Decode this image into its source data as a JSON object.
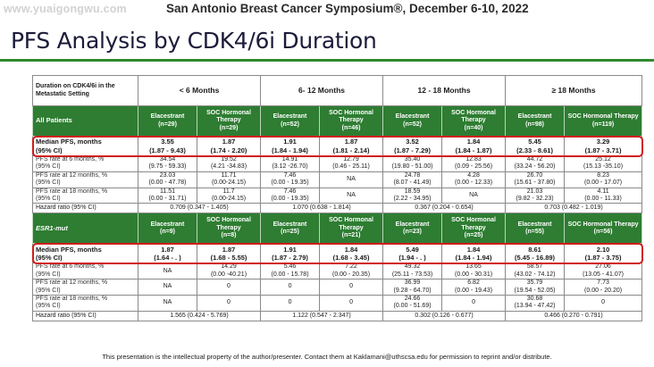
{
  "watermark": "www.yuaigongwu.com",
  "header": "San Antonio Breast Cancer Symposium®, December 6-10, 2022",
  "title": "PFS Analysis by CDK4/6i Duration",
  "table": {
    "duration_label": "Duration on CDK4/6i in the Metastatic Setting",
    "durations": [
      "< 6 Months",
      "6- 12 Months",
      "12 - 18 Months",
      "≥ 18 Months"
    ],
    "all_patients": {
      "label": "All Patients",
      "arms": [
        {
          "name": "Elacestrant",
          "n": "(n=29)"
        },
        {
          "name": "SOC Hormonal Therapy",
          "n": "(n=29)"
        },
        {
          "name": "Elacestrant",
          "n": "(n=52)"
        },
        {
          "name": "SOC Hormonal Therapy",
          "n": "(n=46)"
        },
        {
          "name": "Elacestrant",
          "n": "(n=52)"
        },
        {
          "name": "SOC Hormonal Therapy",
          "n": "(n=40)"
        },
        {
          "name": "Elacestrant",
          "n": "(n=98)"
        },
        {
          "name": "SOC Hormonal Therapy",
          "n": "(n=119)"
        }
      ],
      "median_label_1": "Median PFS, months",
      "median_label_2": "(95% CI)",
      "median": [
        {
          "v": "3.55",
          "ci": "(1.87 - 9.43)"
        },
        {
          "v": "1.87",
          "ci": "(1.74 - 2.20)"
        },
        {
          "v": "1.91",
          "ci": "(1.84 - 1.94)"
        },
        {
          "v": "1.87",
          "ci": "(1.81 - 2.14)"
        },
        {
          "v": "3.52",
          "ci": "(1.87 - 7.29)"
        },
        {
          "v": "1.84",
          "ci": "(1.84 - 1.87)"
        },
        {
          "v": "5.45",
          "ci": "(2.33 - 8.61)"
        },
        {
          "v": "3.29",
          "ci": "(1.87 - 3.71)"
        }
      ],
      "rates": [
        {
          "label_1": "PFS rate at 6 months, %",
          "label_2": "(95% CI)",
          "cells": [
            {
              "v": "34.54",
              "ci": "(9.75 - 59.33)"
            },
            {
              "v": "19.52",
              "ci": "(4.21 -34.83)"
            },
            {
              "v": "14.91",
              "ci": "(3.12 -26.70)"
            },
            {
              "v": "12.79",
              "ci": "(0.46 - 25.11)"
            },
            {
              "v": "35.40",
              "ci": "(19.80 - 51.00)"
            },
            {
              "v": "12.83",
              "ci": "(0.09 - 25.56)"
            },
            {
              "v": "44.72",
              "ci": "(33.24 - 56.20)"
            },
            {
              "v": "25.12",
              "ci": "(15.13 -35.10)"
            }
          ]
        },
        {
          "label_1": "PFS rate at 12 months, %",
          "label_2": "(95% CI)",
          "cells": [
            {
              "v": "23.03",
              "ci": "(0.00 - 47.78)"
            },
            {
              "v": "11.71",
              "ci": "(0.00-24.15)"
            },
            {
              "v": "7.46",
              "ci": "(0.00 - 19.35)"
            },
            {
              "v": "NA",
              "ci": ""
            },
            {
              "v": "24.78",
              "ci": "(8.07 - 41.49)"
            },
            {
              "v": "4.28",
              "ci": "(0.00 - 12.33)"
            },
            {
              "v": "26.70",
              "ci": "(15.61 - 37.80)"
            },
            {
              "v": "8.23",
              "ci": "(0.00 - 17.07)"
            }
          ]
        },
        {
          "label_1": "PFS rate at 18 months, %",
          "label_2": "(95% CI)",
          "cells": [
            {
              "v": "11.51",
              "ci": "(0.00 - 31.71)"
            },
            {
              "v": "11.7",
              "ci": "(0.00-24.15)"
            },
            {
              "v": "7.46",
              "ci": "(0.00 - 19.35)"
            },
            {
              "v": "NA",
              "ci": ""
            },
            {
              "v": "18.59",
              "ci": "(2.22 - 34.95)"
            },
            {
              "v": "NA",
              "ci": ""
            },
            {
              "v": "21.03",
              "ci": "(9.82 - 32.23)"
            },
            {
              "v": "4.11",
              "ci": "(0.00 - 11.33)"
            }
          ]
        }
      ],
      "hr_label": "Hazard ratio (95% CI)",
      "hr": [
        "0.709 (0.347 - 1.405)",
        "1.070 (0.638 - 1.814)",
        "0.367 (0.204 - 0.654)",
        "0.703 (0.482 - 1.019)"
      ]
    },
    "esr1": {
      "label": "ESR1-mut",
      "arms": [
        {
          "name": "Elacestrant",
          "n": "(n=9)"
        },
        {
          "name": "SOC Hormonal Therapy",
          "n": "(n=8)"
        },
        {
          "name": "Elacestrant",
          "n": "(n=25)"
        },
        {
          "name": "SOC Hormonal Therapy",
          "n": "(n=21)"
        },
        {
          "name": "Elacestrant",
          "n": "(n=23)"
        },
        {
          "name": "SOC Hormonal Therapy",
          "n": "(n=25)"
        },
        {
          "name": "Elacestrant",
          "n": "(n=55)"
        },
        {
          "name": "SOC Hormonal Therapy",
          "n": "(n=56)"
        }
      ],
      "median_label_1": "Median PFS, months",
      "median_label_2": "(95% CI)",
      "median": [
        {
          "v": "1.87",
          "ci": "(1.64 - . )"
        },
        {
          "v": "1.87",
          "ci": "(1.68 - 5.55)"
        },
        {
          "v": "1.91",
          "ci": "(1.87 - 2.79)"
        },
        {
          "v": "1.84",
          "ci": "(1.68 - 3.45)"
        },
        {
          "v": "5.49",
          "ci": "(1.94 - . )"
        },
        {
          "v": "1.84",
          "ci": "(1.84 - 1.94)"
        },
        {
          "v": "8.61",
          "ci": "(5.45 - 16.89)"
        },
        {
          "v": "2.10",
          "ci": "(1.87 - 3.75)"
        }
      ],
      "rates": [
        {
          "label_1": "PFS rate at 6 months, %",
          "label_2": "(95% CI)",
          "cells": [
            {
              "v": "NA",
              "ci": ""
            },
            {
              "v": "14.29",
              "ci": "(0.00 -40.21)"
            },
            {
              "v": "5.46",
              "ci": "(0.00 - 15.78)"
            },
            {
              "v": "7.22",
              "ci": "(0.00 - 20.35)"
            },
            {
              "v": "49.32",
              "ci": "(25.11 - 73.53)"
            },
            {
              "v": "13.65",
              "ci": "(0.00 - 30.31)"
            },
            {
              "v": "58.57",
              "ci": "(43.02 - 74.12)"
            },
            {
              "v": "27.06",
              "ci": "(13.05 - 41.07)"
            }
          ]
        },
        {
          "label_1": "PFS rate at 12 months, %",
          "label_2": "(95% CI)",
          "cells": [
            {
              "v": "NA",
              "ci": ""
            },
            {
              "v": "0",
              "ci": ""
            },
            {
              "v": "0",
              "ci": ""
            },
            {
              "v": "0",
              "ci": ""
            },
            {
              "v": "36.99",
              "ci": "(9.28 - 64.70)"
            },
            {
              "v": "6.82",
              "ci": "(0.00 - 19.43)"
            },
            {
              "v": "35.79",
              "ci": "(19.54 - 52.05)"
            },
            {
              "v": "7.73",
              "ci": "(0.00 - 20.20)"
            }
          ]
        },
        {
          "label_1": "PFS rate at 18 months, %",
          "label_2": "(95% CI)",
          "cells": [
            {
              "v": "NA",
              "ci": ""
            },
            {
              "v": "0",
              "ci": ""
            },
            {
              "v": "0",
              "ci": ""
            },
            {
              "v": "0",
              "ci": ""
            },
            {
              "v": "24.66",
              "ci": "(0.00 - 51.69)"
            },
            {
              "v": "0",
              "ci": ""
            },
            {
              "v": "30.68",
              "ci": "(13.94 - 47.42)"
            },
            {
              "v": "0",
              "ci": ""
            }
          ]
        }
      ],
      "hr_label": "Hazard ratio (95% CI)",
      "hr": [
        "1.565 (0.424 - 5.769)",
        "1.122 (0.547 - 2.347)",
        "0.302 (0.126 - 0.677)",
        "0.466 (0.270 - 0.791)"
      ]
    }
  },
  "footer": {
    "text_before": "This presentation is the intellectual property of the author/presenter. Contact them at ",
    "email": "Kaklamani@uthscsa.edu",
    "text_after": "  for permission to reprint and/or distribute."
  }
}
